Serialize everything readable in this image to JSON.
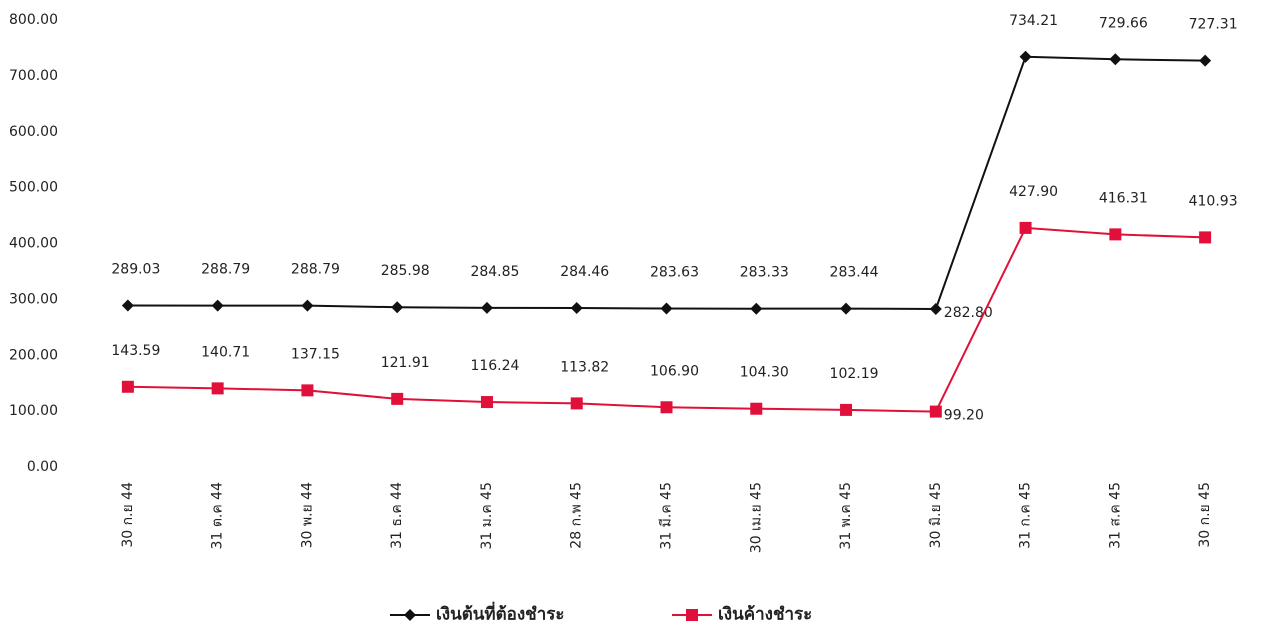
{
  "chart_data": {
    "type": "line",
    "categories": [
      "30 ก.ย 44",
      "31 ต.ค 44",
      "30 พ.ย 44",
      "31 ธ.ค 44",
      "31 ม.ค 45",
      "28 ก.พ 45",
      "31 มี.ค 45",
      "30 เม.ย 45",
      "31 พ.ค 45",
      "30 มิ.ย 45",
      "31 ก.ค 45",
      "31 ส.ค 45",
      "30 ก.ย 45"
    ],
    "series": [
      {
        "name": "เงินต้นที่ต้องชำระ",
        "color": "#111111",
        "marker": "diamond",
        "values": [
          289.03,
          288.79,
          288.79,
          285.98,
          284.85,
          284.46,
          283.63,
          283.33,
          283.44,
          282.8,
          734.21,
          729.66,
          727.31
        ],
        "value_labels": [
          "289.03",
          "288.79",
          "288.79",
          "285.98",
          "284.85",
          "284.46",
          "283.63",
          "283.33",
          "283.44",
          "282.80",
          "734.21",
          "729.66",
          "727.31"
        ]
      },
      {
        "name": "เงินค้างชำระ",
        "color": "#e0103a",
        "marker": "square",
        "values": [
          143.59,
          140.71,
          137.15,
          121.91,
          116.24,
          113.82,
          106.9,
          104.3,
          102.19,
          99.2,
          427.9,
          416.31,
          410.93
        ],
        "value_labels": [
          "143.59",
          "140.71",
          "137.15",
          "121.91",
          "116.24",
          "113.82",
          "106.90",
          "104.30",
          "102.19",
          "99.20",
          "427.90",
          "416.31",
          "410.93"
        ]
      }
    ],
    "ylim": [
      0,
      800
    ],
    "yticks": [
      {
        "value": 0,
        "label": "0.00"
      },
      {
        "value": 100,
        "label": "100.00"
      },
      {
        "value": 200,
        "label": "200.00"
      },
      {
        "value": 300,
        "label": "300.00"
      },
      {
        "value": 400,
        "label": "400.00"
      },
      {
        "value": 500,
        "label": "500.00"
      },
      {
        "value": 600,
        "label": "600.00"
      },
      {
        "value": 700,
        "label": "700.00"
      },
      {
        "value": 800,
        "label": "800.00"
      }
    ],
    "grid": false,
    "legend": "bottom"
  }
}
